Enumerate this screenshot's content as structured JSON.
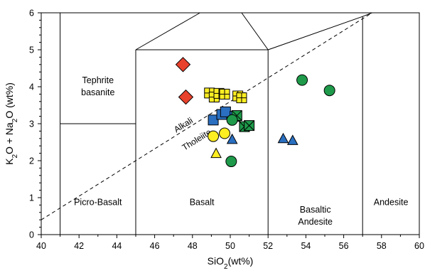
{
  "chart_data": {
    "type": "scatter",
    "title": "",
    "xlabel": {
      "main": "SiO",
      "sub": "2",
      "tail": "(wt%)"
    },
    "ylabel": {
      "p1": "K",
      "s1": "2",
      "p2": "O + Na",
      "s2": "2",
      "p3": "O (wt%)"
    },
    "xlim": [
      40,
      60
    ],
    "ylim": [
      0,
      6
    ],
    "xticks": [
      "40",
      "42",
      "44",
      "46",
      "48",
      "50",
      "52",
      "54",
      "56",
      "58",
      "60"
    ],
    "yticks": [
      "0",
      "1",
      "2",
      "3",
      "4",
      "5",
      "6"
    ],
    "grid": false,
    "boundaries": [
      [
        [
          41,
          0
        ],
        [
          41,
          6
        ]
      ],
      [
        [
          41,
          3
        ],
        [
          45,
          3
        ]
      ],
      [
        [
          45,
          0
        ],
        [
          45,
          5
        ]
      ],
      [
        [
          45,
          5
        ],
        [
          52,
          5
        ]
      ],
      [
        [
          52,
          0
        ],
        [
          52,
          5
        ]
      ],
      [
        [
          45,
          5
        ],
        [
          48.4,
          6
        ]
      ],
      [
        [
          52,
          5
        ],
        [
          50.6,
          6
        ]
      ],
      [
        [
          52,
          5
        ],
        [
          57,
          5.9
        ]
      ],
      [
        [
          57,
          0
        ],
        [
          57,
          5.9
        ]
      ],
      [
        [
          57,
          5.9
        ],
        [
          57.5,
          6
        ]
      ]
    ],
    "divider": [
      [
        40,
        0.4
      ],
      [
        57.5,
        6
      ]
    ],
    "field_labels": [
      {
        "lines": [
          "Tephrite",
          "basanite"
        ],
        "x": 43,
        "y": 4.1
      },
      {
        "lines": [
          "Picro-Basalt"
        ],
        "x": 43,
        "y": 0.8
      },
      {
        "lines": [
          "Basalt"
        ],
        "x": 48.5,
        "y": 0.8
      },
      {
        "lines": [
          "Basaltic",
          "Andesite"
        ],
        "x": 54.5,
        "y": 0.6
      },
      {
        "lines": [
          "Andesite"
        ],
        "x": 58.5,
        "y": 0.8
      }
    ],
    "series_labels": [
      {
        "text": "Alkali",
        "x": 47.6,
        "y": 2.9
      },
      {
        "text": "Tholeiite",
        "x": 48.3,
        "y": 2.5
      }
    ],
    "series": [
      {
        "marker": "diamond",
        "fill": "#e8412c",
        "points": [
          [
            47.5,
            4.6
          ],
          [
            47.65,
            3.72
          ]
        ]
      },
      {
        "marker": "square-cross",
        "fill": "#ffee22",
        "points": [
          [
            48.9,
            3.83
          ],
          [
            49.15,
            3.72
          ],
          [
            49.4,
            3.82
          ],
          [
            49.7,
            3.8
          ],
          [
            50.4,
            3.75
          ],
          [
            50.6,
            3.7
          ]
        ]
      },
      {
        "marker": "square",
        "fill": "#2a6fc0",
        "points": [
          [
            49.1,
            3.1
          ],
          [
            49.55,
            3.25
          ],
          [
            49.75,
            3.32
          ],
          [
            50.25,
            3.2
          ]
        ]
      },
      {
        "marker": "square-cross",
        "fill": "#1e9a4a",
        "points": [
          [
            50.35,
            3.22
          ],
          [
            50.75,
            2.92
          ],
          [
            51.0,
            2.95
          ]
        ]
      },
      {
        "marker": "circle",
        "fill": "#1e9a4a",
        "points": [
          [
            50.1,
            3.1
          ],
          [
            53.8,
            4.18
          ],
          [
            55.25,
            3.9
          ],
          [
            50.05,
            1.98
          ]
        ]
      },
      {
        "marker": "circle",
        "fill": "#ffee22",
        "points": [
          [
            49.1,
            2.66
          ],
          [
            49.7,
            2.74
          ]
        ]
      },
      {
        "marker": "triangle",
        "fill": "#ffee22",
        "points": [
          [
            49.25,
            2.2
          ]
        ]
      },
      {
        "marker": "triangle",
        "fill": "#2a6fc0",
        "points": [
          [
            50.1,
            2.58
          ],
          [
            52.8,
            2.6
          ],
          [
            53.3,
            2.55
          ]
        ]
      }
    ]
  }
}
